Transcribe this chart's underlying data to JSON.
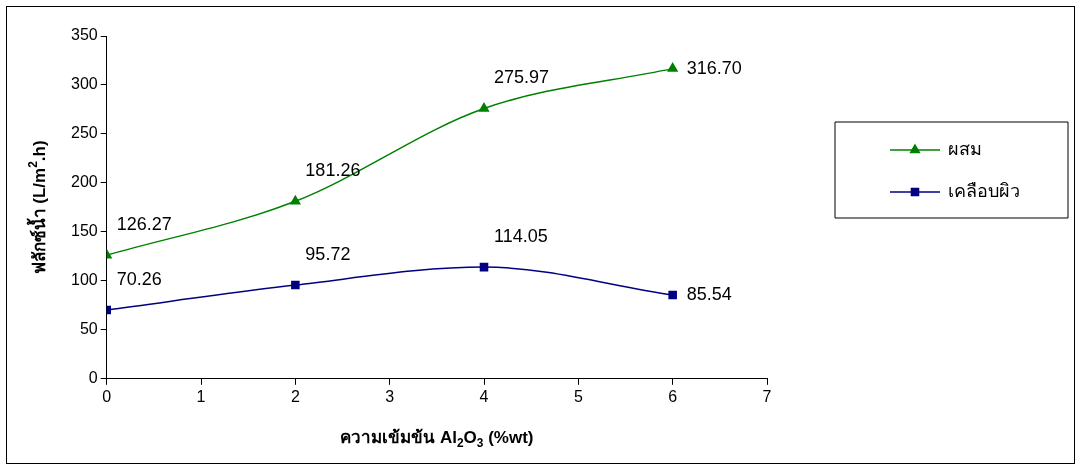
{
  "chart_data": {
    "type": "line",
    "xlabel": "ความเข้มข้น Al$_{2}$O$_{3}$ (%wt)",
    "ylabel": "ฟลักซ์น้ำ (L/m$^{2}$.h)",
    "x": [
      0,
      2,
      4,
      6
    ],
    "xlim": [
      0,
      7
    ],
    "xticks": [
      0,
      1,
      2,
      3,
      4,
      5,
      6,
      7
    ],
    "ylim": [
      0,
      350
    ],
    "yticks": [
      0,
      50,
      100,
      150,
      200,
      250,
      300,
      350
    ],
    "grid": false,
    "legend": "right",
    "series": [
      {
        "name": "ผสม",
        "color": "#008000",
        "marker": "triangle",
        "values": [
          126.27,
          181.26,
          275.97,
          316.7
        ],
        "value_labels": [
          "126.27",
          "181.26",
          "275.97",
          "316.70"
        ]
      },
      {
        "name": "เคลือบผิว",
        "color": "#000080",
        "marker": "square",
        "values": [
          70.26,
          95.72,
          114.05,
          85.54
        ],
        "value_labels": [
          "70.26",
          "95.72",
          "114.05",
          "85.54"
        ]
      }
    ]
  }
}
